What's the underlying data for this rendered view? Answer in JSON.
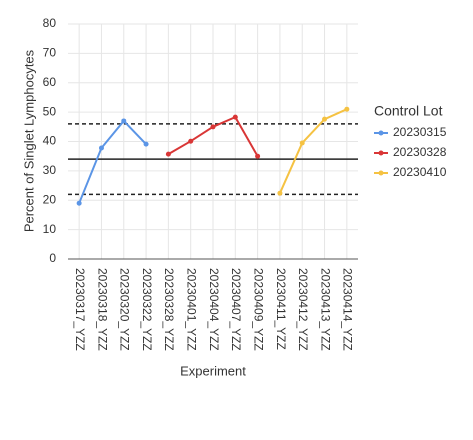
{
  "chart_data": {
    "type": "line",
    "x_label": "Experiment",
    "y_label": "Percent of Singlet Lymphocytes",
    "legend_title": "Control Lot",
    "legend_position": "right",
    "grid": true,
    "categories": [
      "20230317_YZZ",
      "20230318_YZZ",
      "20230320_YZZ",
      "20230322_YZZ",
      "20230328_YZZ",
      "20230401_YZZ",
      "20230404_YZZ",
      "20230407_YZZ",
      "20230409_YZZ",
      "20230411_YZZ",
      "20230412_YZZ",
      "20230413_YZZ",
      "20230414_YZZ"
    ],
    "series": [
      {
        "name": "20230315",
        "color": "#5b95e6",
        "values": [
          19,
          37.8,
          47,
          39.1,
          null,
          null,
          null,
          null,
          null,
          null,
          null,
          null,
          null
        ]
      },
      {
        "name": "20230328",
        "color": "#d93636",
        "values": [
          null,
          null,
          null,
          null,
          35.7,
          40.1,
          45,
          48.3,
          35,
          null,
          null,
          null,
          null
        ]
      },
      {
        "name": "20230410",
        "color": "#f5c242",
        "values": [
          null,
          null,
          null,
          null,
          null,
          null,
          null,
          null,
          null,
          22.4,
          39.5,
          47.6,
          51
        ]
      }
    ],
    "reference_lines": [
      {
        "value": 46,
        "style": "dashed"
      },
      {
        "value": 34,
        "style": "solid"
      },
      {
        "value": 22,
        "style": "dashed"
      }
    ],
    "ylim": [
      0,
      80
    ],
    "yticks": [
      0,
      10,
      20,
      30,
      40,
      50,
      60,
      70,
      80
    ]
  }
}
